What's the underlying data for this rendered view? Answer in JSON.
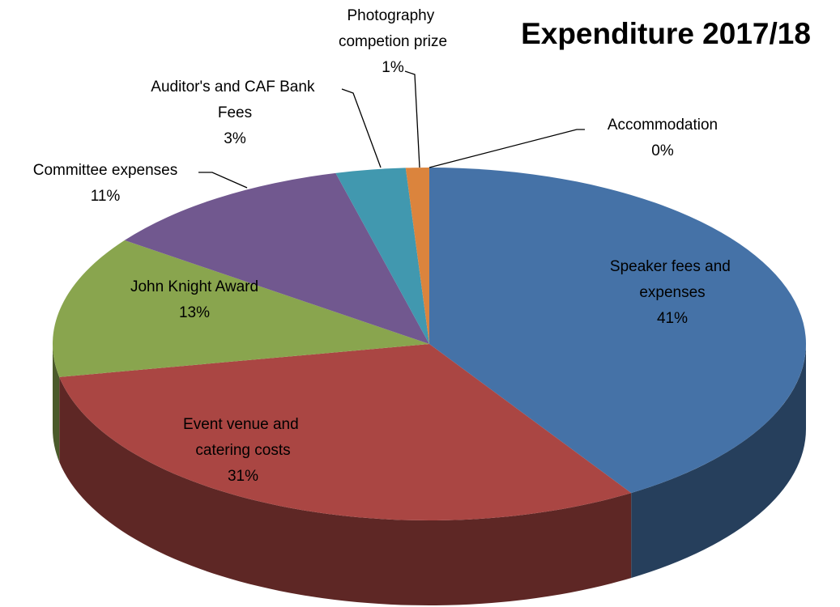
{
  "chart_data": {
    "type": "pie",
    "three_d": true,
    "title": "Expenditure 2017/18",
    "categories": [
      "Speaker fees and expenses",
      "Event venue and catering costs",
      "John Knight Award",
      "Committee expenses",
      "Auditor's and CAF Bank Fees",
      "Photography competion prize",
      "Accommodation"
    ],
    "values": [
      41,
      31,
      13,
      11,
      3,
      1,
      0
    ],
    "value_labels": [
      "41%",
      "31%",
      "13%",
      "11%",
      "3%",
      "1%",
      "0%"
    ],
    "colors": [
      "#4572a7",
      "#aa4643",
      "#89a54e",
      "#71588f",
      "#4198af",
      "#db843d",
      "#93a9cf"
    ]
  }
}
